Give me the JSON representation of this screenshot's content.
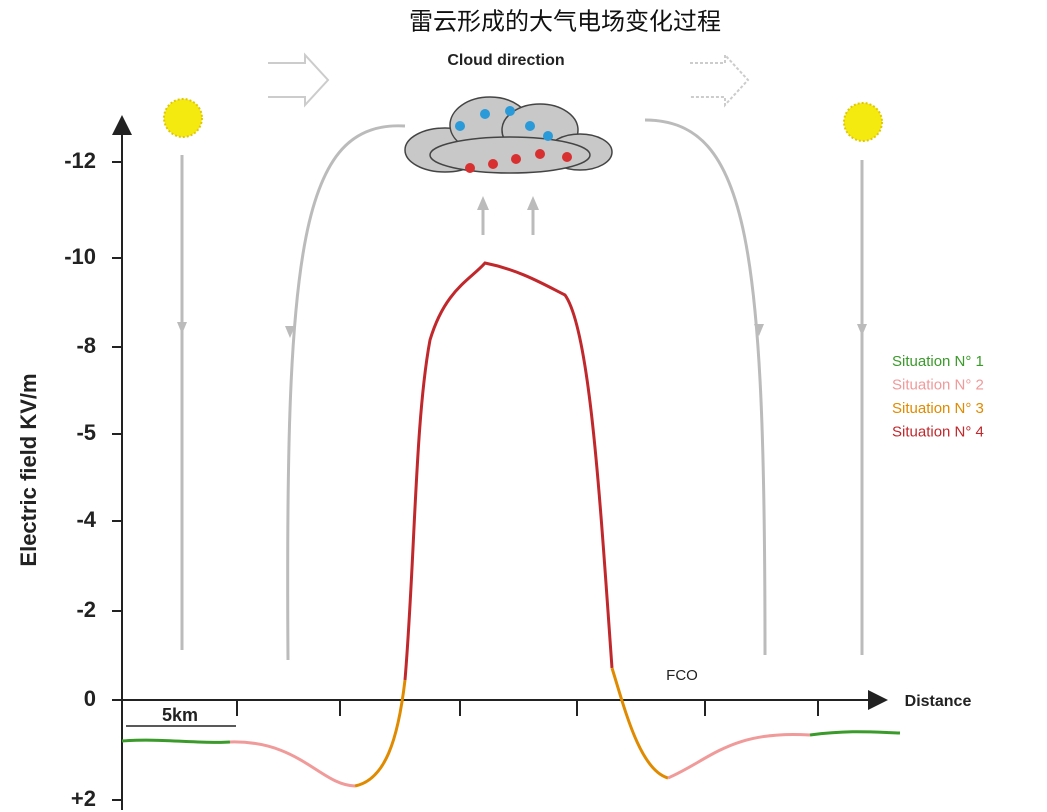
{
  "title": "雷云形成的大气电场变化过程",
  "annotation": "Cloud direction",
  "y_axis": {
    "label": "Electric field KV/m",
    "ticks": [
      "-12",
      "-10",
      "-8",
      "-5",
      "-4",
      "-2",
      "0",
      "+2"
    ]
  },
  "x_axis": {
    "label": "Distance"
  },
  "scale_label": "5km",
  "fco_label": "FCO",
  "legend": [
    {
      "label": "Situation N° 1",
      "color": "#3a9a2a"
    },
    {
      "label": "Situation N° 2",
      "color": "#f09a9a"
    },
    {
      "label": "Situation N° 3",
      "color": "#e08a00"
    },
    {
      "label": "Situation N° 4",
      "color": "#c0282c"
    }
  ]
}
